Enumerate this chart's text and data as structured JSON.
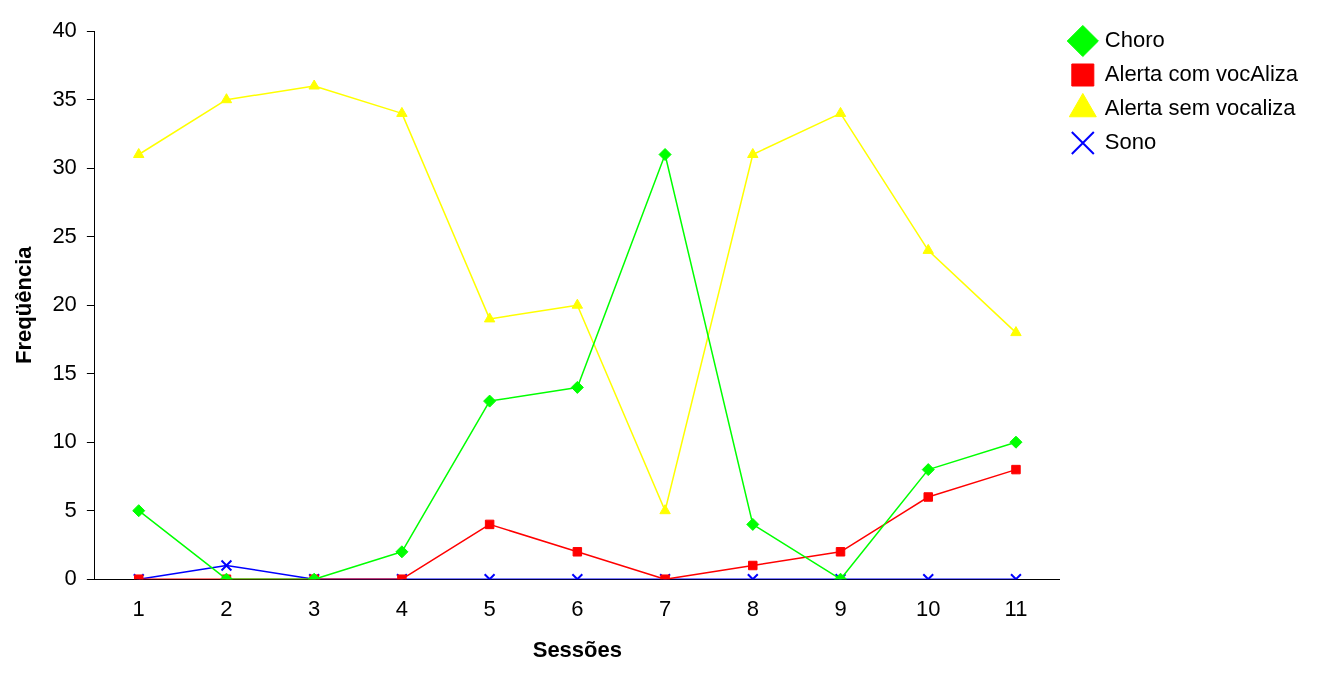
{
  "chart_data": {
    "type": "line",
    "xlabel": "Sessões",
    "ylabel": "Freqüência",
    "categories": [
      "1",
      "2",
      "3",
      "4",
      "5",
      "6",
      "7",
      "8",
      "9",
      "10",
      "11"
    ],
    "ylim": [
      0,
      40
    ],
    "yticks": [
      0,
      5,
      10,
      15,
      20,
      25,
      30,
      35,
      40
    ],
    "grid": false,
    "legend": "top right",
    "series": [
      {
        "name": "Choro",
        "color": "#00ff00",
        "marker": "diamond",
        "values": [
          5,
          0,
          0,
          2,
          13,
          14,
          31,
          4,
          0,
          8,
          10
        ]
      },
      {
        "name": "Alerta com vocAliza",
        "color": "#ff0000",
        "marker": "square",
        "values": [
          0,
          0,
          0,
          0,
          4,
          2,
          0,
          1,
          2,
          6,
          8
        ]
      },
      {
        "name": "Alerta sem vocaliza",
        "color": "#ffff00",
        "marker": "triangle",
        "values": [
          31,
          35,
          36,
          34,
          19,
          20,
          5,
          31,
          34,
          24,
          18
        ]
      },
      {
        "name": "Sono",
        "color": "#0000ff",
        "marker": "cross",
        "values": [
          0,
          1,
          0,
          0,
          0,
          0,
          0,
          0,
          0,
          0,
          0
        ]
      }
    ]
  }
}
